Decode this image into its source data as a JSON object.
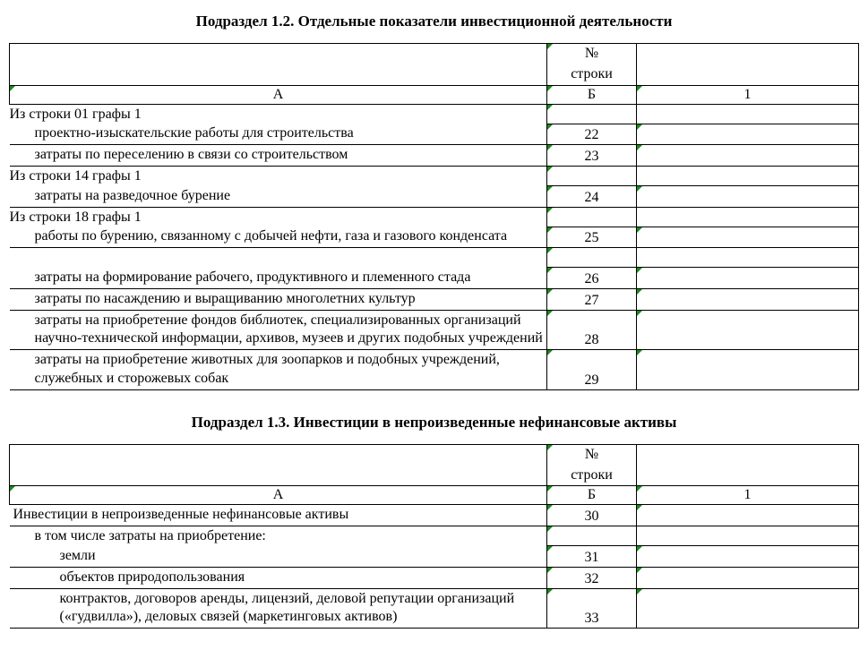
{
  "section12": {
    "title": "Подраздел 1.2. Отдельные показатели инвестиционной деятельности",
    "header_b_line1": "№",
    "header_b_line2": "строки",
    "col_a": "А",
    "col_b": "Б",
    "col_1": "1",
    "rows": [
      {
        "kind": "section",
        "text": "Из строки 01 графы 1"
      },
      {
        "kind": "data",
        "indent": 1,
        "text": "проектно-изыскательские работы для строительства",
        "b": "22",
        "v": ""
      },
      {
        "kind": "data",
        "indent": 1,
        "text": "затраты по переселению в связи со строительством",
        "b": "23",
        "v": ""
      },
      {
        "kind": "section",
        "text": "Из строки 14 графы 1"
      },
      {
        "kind": "data",
        "indent": 1,
        "text": "затраты на разведочное бурение",
        "b": "24",
        "v": ""
      },
      {
        "kind": "section",
        "text": "Из строки 18 графы 1"
      },
      {
        "kind": "data",
        "indent": 1,
        "text": "работы по бурению, связанному с добычей нефти, газа и газового конденсата",
        "b": "25",
        "v": ""
      },
      {
        "kind": "gap"
      },
      {
        "kind": "data",
        "indent": 1,
        "text": "затраты на формирование рабочего, продуктивного и племенного стада",
        "b": "26",
        "v": ""
      },
      {
        "kind": "data",
        "indent": 1,
        "text": "затраты по насаждению и выращиванию многолетних культур",
        "b": "27",
        "v": ""
      },
      {
        "kind": "data",
        "indent": 1,
        "text": "затраты на приобретение фондов библиотек, специализированных организаций научно-технической информации, архивов, музеев и других подобных учреждений",
        "b": "28",
        "v": ""
      },
      {
        "kind": "data",
        "indent": 1,
        "text": "затраты на приобретение животных для зоопарков и подобных учреждений, служебных и сторожевых собак",
        "b": "29",
        "v": ""
      }
    ]
  },
  "section13": {
    "title": "Подраздел 1.3. Инвестиции в непроизведенные нефинансовые активы",
    "header_b_line1": "№",
    "header_b_line2": "строки",
    "col_a": "А",
    "col_b": "Б",
    "col_1": "1",
    "rows": [
      {
        "kind": "data",
        "indent": 0,
        "text": "Инвестиции в непроизведенные нефинансовые активы",
        "b": "30",
        "v": ""
      },
      {
        "kind": "section",
        "indent": 1,
        "text": "в том числе затраты на приобретение:"
      },
      {
        "kind": "data",
        "indent": 2,
        "text": "земли",
        "b": "31",
        "v": ""
      },
      {
        "kind": "data",
        "indent": 2,
        "text": "объектов природопользования",
        "b": "32",
        "v": ""
      },
      {
        "kind": "data",
        "indent": 2,
        "text": "контрактов, договоров аренды, лицензий, деловой репутации организаций («гудвилла»), деловых связей (маркетинговых активов)",
        "b": "33",
        "v": ""
      }
    ]
  }
}
